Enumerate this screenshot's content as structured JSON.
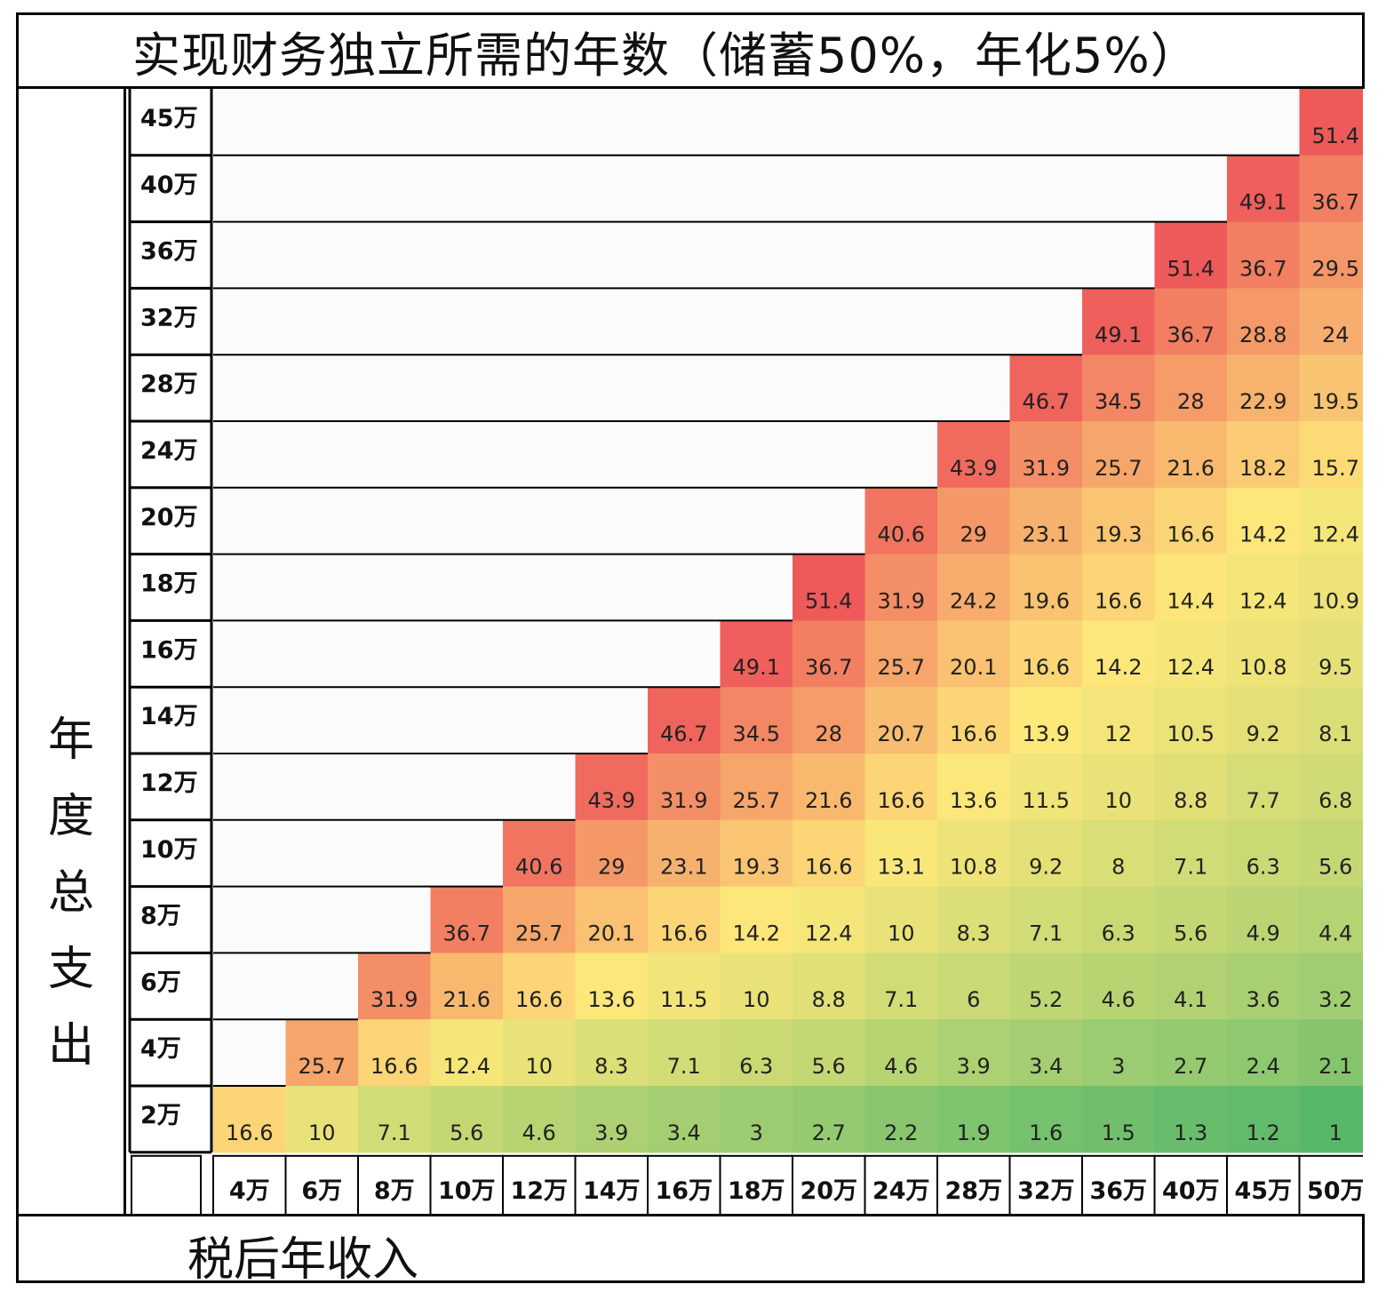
{
  "chart_data": {
    "type": "heatmap",
    "title": "实现财务独立所需的年数（储蓄50%，年化5%）",
    "xlabel": "税后年收入",
    "ylabel": "年度总支出",
    "x_categories": [
      "4万",
      "6万",
      "8万",
      "10万",
      "12万",
      "14万",
      "16万",
      "18万",
      "20万",
      "24万",
      "28万",
      "32万",
      "36万",
      "40万",
      "45万",
      "50万"
    ],
    "y_categories": [
      "45万",
      "40万",
      "36万",
      "32万",
      "28万",
      "24万",
      "20万",
      "18万",
      "16万",
      "14万",
      "12万",
      "10万",
      "8万",
      "6万",
      "4万",
      "2万"
    ],
    "values": [
      [
        null,
        null,
        null,
        null,
        null,
        null,
        null,
        null,
        null,
        null,
        null,
        null,
        null,
        null,
        null,
        51.4
      ],
      [
        null,
        null,
        null,
        null,
        null,
        null,
        null,
        null,
        null,
        null,
        null,
        null,
        null,
        null,
        49.1,
        36.7
      ],
      [
        null,
        null,
        null,
        null,
        null,
        null,
        null,
        null,
        null,
        null,
        null,
        null,
        null,
        51.4,
        36.7,
        29.5
      ],
      [
        null,
        null,
        null,
        null,
        null,
        null,
        null,
        null,
        null,
        null,
        null,
        null,
        49.1,
        36.7,
        28.8,
        24
      ],
      [
        null,
        null,
        null,
        null,
        null,
        null,
        null,
        null,
        null,
        null,
        null,
        46.7,
        34.5,
        28,
        22.9,
        19.5
      ],
      [
        null,
        null,
        null,
        null,
        null,
        null,
        null,
        null,
        null,
        null,
        43.9,
        31.9,
        25.7,
        21.6,
        18.2,
        15.7
      ],
      [
        null,
        null,
        null,
        null,
        null,
        null,
        null,
        null,
        null,
        40.6,
        29,
        23.1,
        19.3,
        16.6,
        14.2,
        12.4
      ],
      [
        null,
        null,
        null,
        null,
        null,
        null,
        null,
        null,
        51.4,
        31.9,
        24.2,
        19.6,
        16.6,
        14.4,
        12.4,
        10.9
      ],
      [
        null,
        null,
        null,
        null,
        null,
        null,
        null,
        49.1,
        36.7,
        25.7,
        20.1,
        16.6,
        14.2,
        12.4,
        10.8,
        9.5
      ],
      [
        null,
        null,
        null,
        null,
        null,
        null,
        46.7,
        34.5,
        28,
        20.7,
        16.6,
        13.9,
        12,
        10.5,
        9.2,
        8.1
      ],
      [
        null,
        null,
        null,
        null,
        null,
        43.9,
        31.9,
        25.7,
        21.6,
        16.6,
        13.6,
        11.5,
        10,
        8.8,
        7.7,
        6.8
      ],
      [
        null,
        null,
        null,
        null,
        40.6,
        29,
        23.1,
        19.3,
        16.6,
        13.1,
        10.8,
        9.2,
        8,
        7.1,
        6.3,
        5.6
      ],
      [
        null,
        null,
        null,
        36.7,
        25.7,
        20.1,
        16.6,
        14.2,
        12.4,
        10,
        8.3,
        7.1,
        6.3,
        5.6,
        4.9,
        4.4
      ],
      [
        null,
        null,
        31.9,
        21.6,
        16.6,
        13.6,
        11.5,
        10,
        8.8,
        7.1,
        6,
        5.2,
        4.6,
        4.1,
        3.6,
        3.2
      ],
      [
        null,
        25.7,
        16.6,
        12.4,
        10,
        8.3,
        7.1,
        6.3,
        5.6,
        4.6,
        3.9,
        3.4,
        3,
        2.7,
        2.4,
        2.1
      ],
      [
        16.6,
        10,
        7.1,
        5.6,
        4.6,
        3.9,
        3.4,
        3,
        2.7,
        2.2,
        1.9,
        1.6,
        1.5,
        1.3,
        1.2,
        1
      ]
    ],
    "color_scale": {
      "low": "#57b86a",
      "mid": "#fde87a",
      "high": "#ee5a5a"
    }
  }
}
